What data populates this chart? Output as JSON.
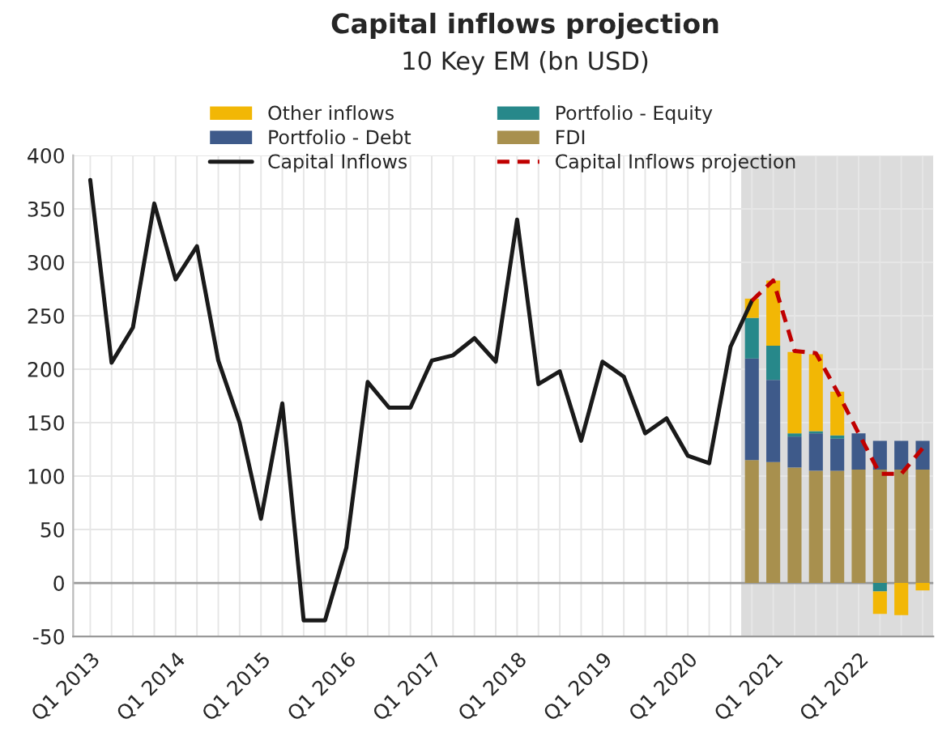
{
  "chart_data": {
    "type": "bar",
    "stacked": true,
    "title": "Capital inflows projection",
    "subtitle": "10 Key EM (bn USD)",
    "categories": [
      "Q1 2013",
      null,
      null,
      null,
      "Q1 2014",
      null,
      null,
      null,
      "Q1 2015",
      null,
      null,
      null,
      "Q1 2016",
      null,
      null,
      null,
      "Q1 2017",
      null,
      null,
      null,
      "Q1 2018",
      null,
      null,
      null,
      "Q1 2019",
      null,
      null,
      null,
      "Q1 2020",
      null,
      null,
      null,
      "Q1 2021",
      null,
      null,
      null,
      "Q1 2022",
      null,
      null,
      null
    ],
    "series": [
      {
        "name": "FDI",
        "color": "#a8904e",
        "values": [
          null,
          null,
          null,
          null,
          null,
          null,
          null,
          null,
          null,
          null,
          null,
          null,
          null,
          null,
          null,
          null,
          null,
          null,
          null,
          null,
          null,
          null,
          null,
          null,
          null,
          null,
          null,
          null,
          null,
          null,
          null,
          115,
          113,
          108,
          105,
          105,
          106,
          106,
          106,
          106
        ]
      },
      {
        "name": "Portfolio - Debt",
        "color": "#3e5a8a",
        "values": [
          null,
          null,
          null,
          null,
          null,
          null,
          null,
          null,
          null,
          null,
          null,
          null,
          null,
          null,
          null,
          null,
          null,
          null,
          null,
          null,
          null,
          null,
          null,
          null,
          null,
          null,
          null,
          null,
          null,
          null,
          null,
          95,
          77,
          29,
          35,
          30,
          34,
          27,
          27,
          27
        ]
      },
      {
        "name": "Portfolio - Equity",
        "color": "#27888a",
        "values": [
          null,
          null,
          null,
          null,
          null,
          null,
          null,
          null,
          null,
          null,
          null,
          null,
          null,
          null,
          null,
          null,
          null,
          null,
          null,
          null,
          null,
          null,
          null,
          null,
          null,
          null,
          null,
          null,
          null,
          null,
          null,
          38,
          32,
          3,
          2,
          3,
          0,
          -8,
          0,
          0
        ]
      },
      {
        "name": "Other inflows",
        "color": "#f2b705",
        "values": [
          null,
          null,
          null,
          null,
          null,
          null,
          null,
          null,
          null,
          null,
          null,
          null,
          null,
          null,
          null,
          null,
          null,
          null,
          null,
          null,
          null,
          null,
          null,
          null,
          null,
          null,
          null,
          null,
          null,
          null,
          null,
          18,
          61,
          76,
          72,
          41,
          0,
          -21,
          -30,
          -7
        ]
      },
      {
        "name": "Capital Inflows",
        "type": "line",
        "color": "#1a1a1a",
        "line_style": "solid",
        "values": [
          377,
          206,
          239,
          355,
          284,
          315,
          208,
          150,
          60,
          168,
          -35,
          -35,
          33,
          188,
          164,
          164,
          208,
          213,
          229,
          207,
          340,
          186,
          198,
          133,
          207,
          193,
          140,
          154,
          119,
          112,
          221,
          264,
          null,
          null,
          null,
          null,
          null,
          null,
          null,
          null
        ]
      },
      {
        "name": "Capital Inflows projection",
        "type": "line",
        "color": "#c00000",
        "line_style": "dashed",
        "values": [
          null,
          null,
          null,
          null,
          null,
          null,
          null,
          null,
          null,
          null,
          null,
          null,
          null,
          null,
          null,
          null,
          null,
          null,
          null,
          null,
          null,
          null,
          null,
          null,
          null,
          null,
          null,
          null,
          null,
          null,
          null,
          264,
          283,
          217,
          215,
          179,
          140,
          102,
          102,
          126
        ]
      }
    ],
    "ylim": [
      -50,
      400
    ],
    "yticks": [
      -50,
      0,
      50,
      100,
      150,
      200,
      250,
      300,
      350,
      400
    ],
    "ref_lines": [
      {
        "axis": "y",
        "value": 0,
        "color": "#999999"
      }
    ],
    "grid": true,
    "legend": "top"
  }
}
